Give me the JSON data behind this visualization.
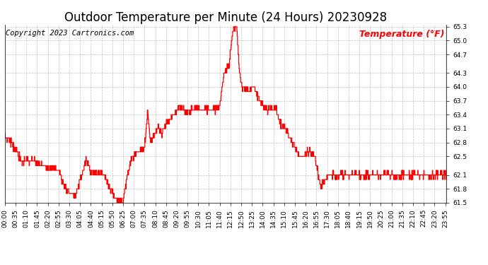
{
  "title": "Outdoor Temperature per Minute (24 Hours) 20230928",
  "copyright_text": "Copyright 2023 Cartronics.com",
  "legend_label": "Temperature (°F)",
  "ylim": [
    61.5,
    65.35
  ],
  "yticks": [
    61.5,
    61.8,
    62.1,
    62.5,
    62.8,
    63.1,
    63.4,
    63.7,
    64.0,
    64.3,
    64.7,
    65.0,
    65.3
  ],
  "line_color": "red",
  "grid_color": "#bbbbbb",
  "background_color": "white",
  "title_fontsize": 12,
  "copyright_fontsize": 7.5,
  "legend_fontsize": 9,
  "tick_fontsize": 6.5,
  "linewidth": 0.9
}
